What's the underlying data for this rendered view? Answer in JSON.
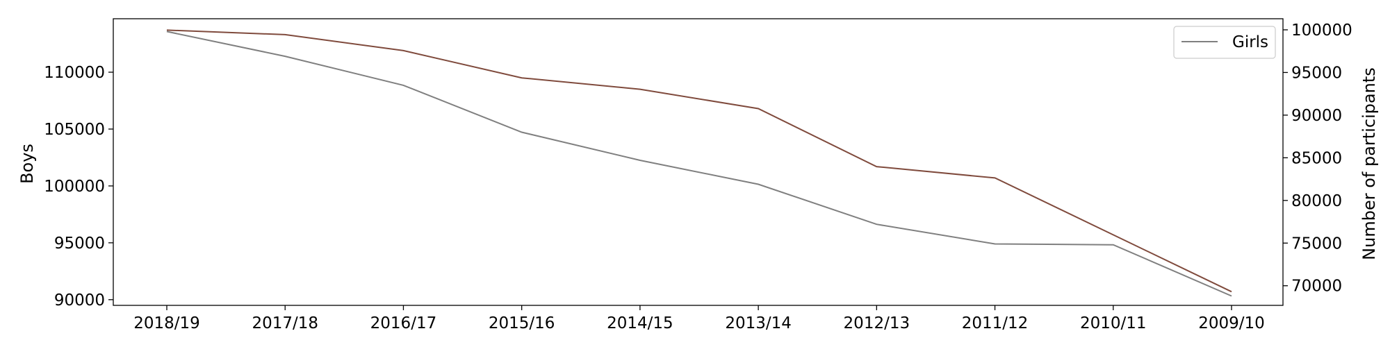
{
  "chart_data": {
    "type": "line",
    "categories": [
      "2018/19",
      "2017/18",
      "2016/17",
      "2015/16",
      "2014/15",
      "2013/14",
      "2012/13",
      "2011/12",
      "2010/11",
      "2009/10"
    ],
    "series": [
      {
        "name": "",
        "axis": "left",
        "color": "#7f4a3c",
        "values": [
          113700,
          113300,
          111900,
          109500,
          108500,
          106800,
          101700,
          100700,
          95700,
          90700
        ]
      },
      {
        "name": "Girls",
        "axis": "right",
        "color": "#7f7f7f",
        "values": [
          99800,
          96900,
          93500,
          88000,
          84700,
          81900,
          77200,
          74900,
          74800,
          68800
        ]
      }
    ],
    "ylabel_left": "Boys",
    "ylabel_right": "Number of participants",
    "ylim_left": [
      89500,
      114700
    ],
    "ylim_right": [
      67700,
      101300
    ],
    "yticks_left": [
      "90000",
      "95000",
      "100000",
      "105000",
      "110000"
    ],
    "yticks_right": [
      "70000",
      "75000",
      "80000",
      "85000",
      "90000",
      "95000",
      "100000"
    ],
    "legend": {
      "position": "top-right",
      "entries": [
        "Girls"
      ]
    },
    "grid": false
  }
}
